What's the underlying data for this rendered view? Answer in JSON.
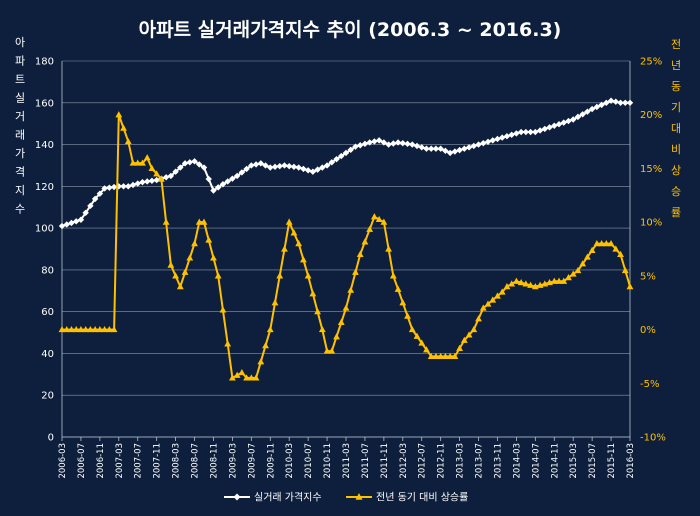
{
  "chart_data": {
    "type": "line",
    "title": "아파트 실거래가격지수 추이 (2006.3 ~ 2016.3)",
    "ylabel_left": "아파트실거래가격지수",
    "ylabel_right": "전년동기대비상승률",
    "yaxis_left": {
      "min": 0,
      "max": 180,
      "step": 20,
      "ticks": [
        "0",
        "20",
        "40",
        "60",
        "80",
        "100",
        "120",
        "140",
        "160",
        "180"
      ]
    },
    "yaxis_right": {
      "min": -10,
      "max": 25,
      "step": 5,
      "ticks": [
        "-10%",
        "-5%",
        "0%",
        "5%",
        "10%",
        "15%",
        "20%",
        "25%"
      ]
    },
    "x_tick_labels": [
      "2006-03",
      "2006-07",
      "2006-11",
      "2007-03",
      "2007-07",
      "2007-11",
      "2008-03",
      "2008-07",
      "2008-11",
      "2009-03",
      "2009-07",
      "2009-11",
      "2010-03",
      "2010-07",
      "2010-11",
      "2011-03",
      "2011-07",
      "2011-11",
      "2012-03",
      "2012-07",
      "2012-11",
      "2013-03",
      "2013-07",
      "2013-11",
      "2014-03",
      "2014-07",
      "2014-11",
      "2015-03",
      "2015-07",
      "2015-11",
      "2016-03"
    ],
    "grid": true,
    "legend_position": "bottom",
    "series": [
      {
        "name": "실거래 가격지수",
        "axis": "left",
        "color": "#ffffff",
        "marker": "diamond",
        "start": "2006-03",
        "frequency": "monthly",
        "keyframes": [
          [
            "2006-03",
            101
          ],
          [
            "2006-07",
            104
          ],
          [
            "2006-10",
            114
          ],
          [
            "2006-12",
            119
          ],
          [
            "2007-03",
            120
          ],
          [
            "2007-05",
            120
          ],
          [
            "2007-08",
            122
          ],
          [
            "2007-11",
            123
          ],
          [
            "2008-02",
            125
          ],
          [
            "2008-05",
            131
          ],
          [
            "2008-07",
            132
          ],
          [
            "2008-09",
            129
          ],
          [
            "2008-11",
            118
          ],
          [
            "2009-01",
            121
          ],
          [
            "2009-04",
            125
          ],
          [
            "2009-07",
            130
          ],
          [
            "2009-09",
            131
          ],
          [
            "2009-11",
            129
          ],
          [
            "2010-02",
            130
          ],
          [
            "2010-05",
            129
          ],
          [
            "2010-08",
            127
          ],
          [
            "2010-11",
            130
          ],
          [
            "2011-03",
            136
          ],
          [
            "2011-05",
            139
          ],
          [
            "2011-08",
            141
          ],
          [
            "2011-10",
            142
          ],
          [
            "2011-12",
            140
          ],
          [
            "2012-02",
            141
          ],
          [
            "2012-05",
            140
          ],
          [
            "2012-08",
            138
          ],
          [
            "2012-11",
            138
          ],
          [
            "2013-01",
            136
          ],
          [
            "2013-04",
            138
          ],
          [
            "2013-07",
            140
          ],
          [
            "2013-10",
            142
          ],
          [
            "2014-01",
            144
          ],
          [
            "2014-04",
            146
          ],
          [
            "2014-07",
            146
          ],
          [
            "2014-11",
            149
          ],
          [
            "2015-03",
            152
          ],
          [
            "2015-07",
            157
          ],
          [
            "2015-11",
            161
          ],
          [
            "2016-01",
            160
          ],
          [
            "2016-03",
            160
          ]
        ]
      },
      {
        "name": "전년 동기 대비 상승률",
        "axis": "right",
        "color": "#ffc000",
        "marker": "triangle",
        "start": "2006-03",
        "frequency": "monthly",
        "keyframes": [
          [
            "2006-03",
            0
          ],
          [
            "2007-02",
            0
          ],
          [
            "2007-03",
            20
          ],
          [
            "2007-05",
            17.5
          ],
          [
            "2007-06",
            15.5
          ],
          [
            "2007-08",
            15.5
          ],
          [
            "2007-09",
            16
          ],
          [
            "2007-10",
            15
          ],
          [
            "2007-12",
            14
          ],
          [
            "2008-01",
            10
          ],
          [
            "2008-02",
            6
          ],
          [
            "2008-04",
            4
          ],
          [
            "2008-07",
            8
          ],
          [
            "2008-08",
            10
          ],
          [
            "2008-09",
            10
          ],
          [
            "2008-12",
            5
          ],
          [
            "2009-03",
            -4.5
          ],
          [
            "2009-05",
            -4
          ],
          [
            "2009-06",
            -4.5
          ],
          [
            "2009-08",
            -4.5
          ],
          [
            "2009-11",
            0
          ],
          [
            "2010-03",
            10
          ],
          [
            "2010-05",
            8
          ],
          [
            "2010-07",
            5
          ],
          [
            "2010-10",
            0
          ],
          [
            "2010-11",
            -2
          ],
          [
            "2010-12",
            -2
          ],
          [
            "2011-03",
            2
          ],
          [
            "2011-06",
            7
          ],
          [
            "2011-09",
            10.5
          ],
          [
            "2011-11",
            10
          ],
          [
            "2012-01",
            5
          ],
          [
            "2012-05",
            0
          ],
          [
            "2012-09",
            -2.5
          ],
          [
            "2012-12",
            -2.5
          ],
          [
            "2013-02",
            -2.5
          ],
          [
            "2013-04",
            -1
          ],
          [
            "2013-06",
            0
          ],
          [
            "2013-08",
            2
          ],
          [
            "2013-12",
            3.5
          ],
          [
            "2014-01",
            4
          ],
          [
            "2014-03",
            4.5
          ],
          [
            "2014-07",
            4
          ],
          [
            "2014-11",
            4.5
          ],
          [
            "2015-01",
            4.5
          ],
          [
            "2015-04",
            5.5
          ],
          [
            "2015-08",
            8
          ],
          [
            "2015-11",
            8
          ],
          [
            "2016-01",
            7
          ],
          [
            "2016-03",
            4
          ]
        ]
      }
    ]
  }
}
